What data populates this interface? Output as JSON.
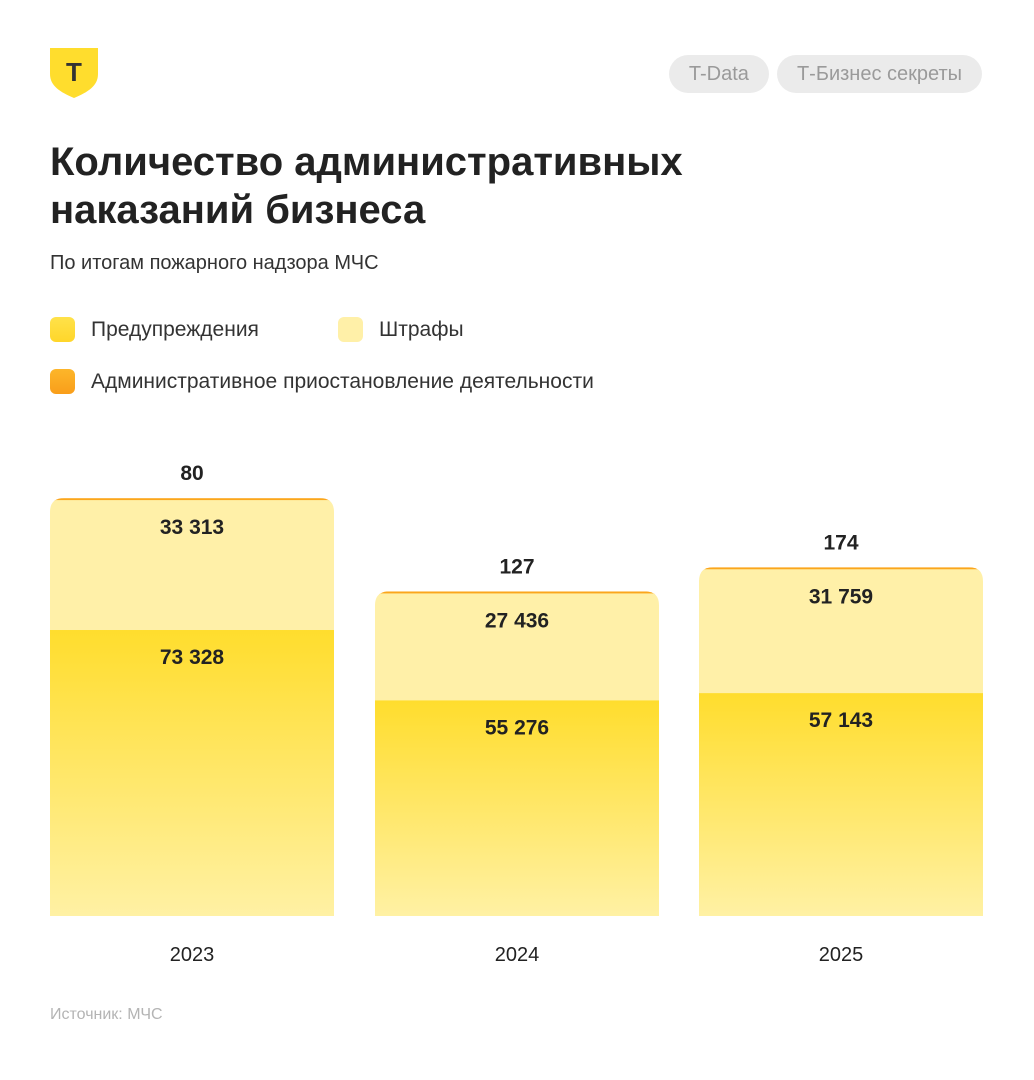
{
  "header": {
    "logo_letter": "Т",
    "tags": [
      "T-Data",
      "Т-Бизнес секреты"
    ]
  },
  "title": "Количество административных наказаний бизнеса",
  "subtitle": "По итогам пожарного надзора МЧС",
  "legend": [
    {
      "label": "Предупреждения",
      "color": "#FFDD2D"
    },
    {
      "label": "Штрафы",
      "color": "#FFF0A8"
    },
    {
      "label": "Административное приостановление деятельности",
      "color": "#FBA61C"
    }
  ],
  "source": "Источник: МЧС",
  "chart_data": {
    "type": "bar",
    "stacked": true,
    "categories": [
      "2023",
      "2024",
      "2025"
    ],
    "series": [
      {
        "name": "Предупреждения",
        "color": "#FFDD2D",
        "values": [
          73328,
          55276,
          57143
        ],
        "labels": [
          "73 328",
          "55 276",
          "57 143"
        ]
      },
      {
        "name": "Штрафы",
        "color": "#FFF0A8",
        "values": [
          33313,
          27436,
          31759
        ],
        "labels": [
          "33 313",
          "27 436",
          "31 759"
        ]
      },
      {
        "name": "Административное приостановление деятельности",
        "color": "#FBA61C",
        "values": [
          80,
          127,
          174
        ],
        "labels": [
          "80",
          "127",
          "174"
        ]
      }
    ],
    "title": "Количество административных наказаний бизнеса",
    "xlabel": "",
    "ylabel": "",
    "grid": false,
    "legend_position": "top-left"
  }
}
